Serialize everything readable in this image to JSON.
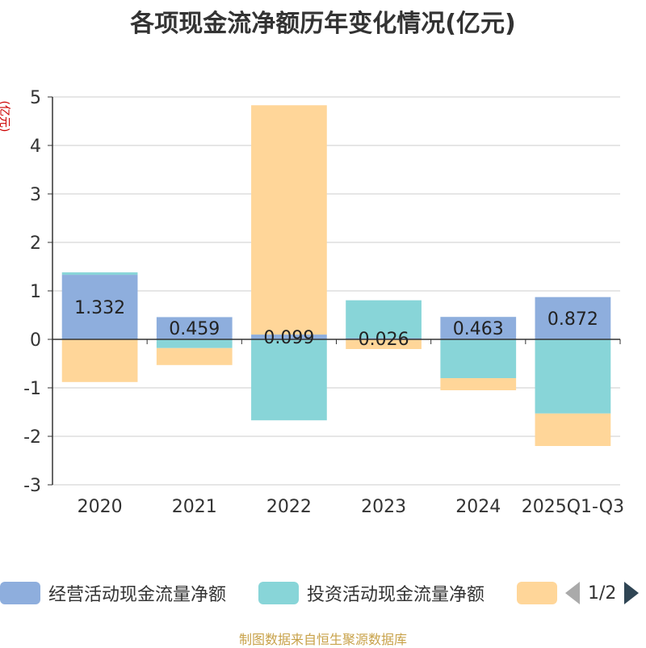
{
  "chart_data": {
    "type": "bar",
    "stacked": true,
    "title": "各项现金流净额历年变化情况(亿元)",
    "ylabel": "(亿元)",
    "ylim": [
      -3,
      5
    ],
    "yticks": [
      5,
      4,
      3,
      2,
      1,
      0,
      -1,
      -2,
      -3
    ],
    "categories": [
      "2020",
      "2021",
      "2022",
      "2023",
      "2024",
      "2025Q1-Q3"
    ],
    "series": [
      {
        "name": "经营活动现金流量净额",
        "color": "#8eaedd",
        "values": [
          1.332,
          0.459,
          0.099,
          0.026,
          0.463,
          0.872
        ],
        "labels": [
          "1.332",
          "0.459",
          "0.099",
          "0.026",
          "0.463",
          "0.872"
        ]
      },
      {
        "name": "投资活动现金流量净额",
        "color": "#88d5d8",
        "values": [
          0.05,
          -0.18,
          -1.67,
          0.78,
          -0.8,
          -1.53
        ]
      },
      {
        "name": "",
        "color": "#ffd699",
        "values": [
          -0.88,
          -0.35,
          4.73,
          -0.2,
          -0.25,
          -0.67
        ]
      }
    ],
    "grid": true
  },
  "legend": {
    "page": "1/2"
  },
  "source": "制图数据来自恒生聚源数据库"
}
